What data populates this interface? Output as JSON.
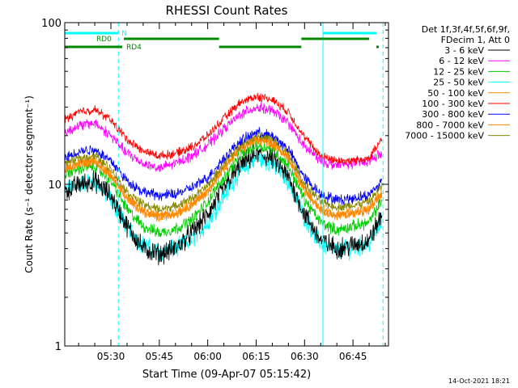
{
  "chart_data": {
    "type": "line",
    "title": "RHESSI Count Rates",
    "xlabel": "Start Time (09-Apr-07 05:15:42)",
    "ylabel": "Count Rate (s⁻¹ detector segment⁻¹)",
    "y_scale": "log",
    "ylim": [
      1,
      100
    ],
    "xlim_minutes_after_0500": [
      15.7,
      116
    ],
    "x_ticks": [
      "05:30",
      "05:45",
      "06:00",
      "06:15",
      "06:30",
      "06:45"
    ],
    "x_tick_minutes_after_0500": [
      30,
      45,
      60,
      75,
      90,
      105
    ],
    "y_ticks": [
      "1",
      "10",
      "100"
    ],
    "y_tick_values": [
      1,
      10,
      100
    ],
    "legend_header": [
      "Det 1f,3f,4f,5f,6f,9f,",
      "FDecim 1, Att 0"
    ],
    "legend_position": "right",
    "series": [
      {
        "name": "3 - 6 keV",
        "color": "#000000",
        "profile": [
          [
            15.7,
            9
          ],
          [
            20,
            10
          ],
          [
            25,
            10.5
          ],
          [
            30,
            8.5
          ],
          [
            35,
            5.5
          ],
          [
            40,
            4
          ],
          [
            45,
            3.7
          ],
          [
            50,
            4
          ],
          [
            55,
            5
          ],
          [
            60,
            6.5
          ],
          [
            65,
            9.5
          ],
          [
            70,
            13
          ],
          [
            75,
            15.5
          ],
          [
            80,
            14.5
          ],
          [
            85,
            11
          ],
          [
            90,
            6.5
          ],
          [
            95,
            4.5
          ],
          [
            100,
            4
          ],
          [
            105,
            4.2
          ],
          [
            110,
            4.5
          ],
          [
            114,
            6.5
          ]
        ]
      },
      {
        "name": "6 - 12 keV",
        "color": "#ff00ff",
        "profile": [
          [
            15.7,
            21
          ],
          [
            20,
            23
          ],
          [
            25,
            24
          ],
          [
            30,
            20
          ],
          [
            35,
            15.5
          ],
          [
            40,
            13.5
          ],
          [
            45,
            12.5
          ],
          [
            50,
            13.5
          ],
          [
            55,
            15
          ],
          [
            60,
            17.5
          ],
          [
            65,
            22
          ],
          [
            70,
            27
          ],
          [
            75,
            30
          ],
          [
            80,
            28.5
          ],
          [
            85,
            24
          ],
          [
            90,
            17
          ],
          [
            95,
            14
          ],
          [
            100,
            13
          ],
          [
            105,
            13.5
          ],
          [
            110,
            14
          ],
          [
            114,
            15.5
          ]
        ]
      },
      {
        "name": "12 - 25 keV",
        "color": "#00cc00",
        "profile": [
          [
            15.7,
            11.5
          ],
          [
            20,
            12.5
          ],
          [
            25,
            13
          ],
          [
            30,
            10.5
          ],
          [
            35,
            7
          ],
          [
            40,
            5.5
          ],
          [
            45,
            5
          ],
          [
            50,
            5.3
          ],
          [
            55,
            6
          ],
          [
            60,
            7.8
          ],
          [
            65,
            11
          ],
          [
            70,
            15
          ],
          [
            75,
            17.5
          ],
          [
            80,
            16.5
          ],
          [
            85,
            13
          ],
          [
            90,
            8
          ],
          [
            95,
            5.8
          ],
          [
            100,
            5.2
          ],
          [
            105,
            5.5
          ],
          [
            110,
            5.8
          ],
          [
            114,
            8
          ]
        ]
      },
      {
        "name": "25 - 50 keV",
        "color": "#00ffff",
        "profile": [
          [
            15.7,
            9
          ],
          [
            20,
            10
          ],
          [
            25,
            10.5
          ],
          [
            30,
            8
          ],
          [
            35,
            5.5
          ],
          [
            40,
            4.2
          ],
          [
            45,
            3.8
          ],
          [
            50,
            4
          ],
          [
            55,
            4.5
          ],
          [
            60,
            5.8
          ],
          [
            65,
            8.5
          ],
          [
            70,
            12
          ],
          [
            75,
            14.5
          ],
          [
            80,
            13.5
          ],
          [
            85,
            10.5
          ],
          [
            90,
            6.2
          ],
          [
            95,
            4.3
          ],
          [
            100,
            3.9
          ],
          [
            105,
            4
          ],
          [
            110,
            4.3
          ],
          [
            114,
            6
          ]
        ]
      },
      {
        "name": "50 - 100 keV",
        "color": "#ff8800",
        "profile": [
          [
            15.7,
            12.5
          ],
          [
            20,
            13.5
          ],
          [
            25,
            14
          ],
          [
            30,
            11.5
          ],
          [
            35,
            8.2
          ],
          [
            40,
            6.8
          ],
          [
            45,
            6.3
          ],
          [
            50,
            6.6
          ],
          [
            55,
            7.5
          ],
          [
            60,
            9
          ],
          [
            65,
            12.5
          ],
          [
            70,
            16.5
          ],
          [
            75,
            19
          ],
          [
            80,
            18
          ],
          [
            85,
            14.5
          ],
          [
            90,
            9.2
          ],
          [
            95,
            7
          ],
          [
            100,
            6.4
          ],
          [
            105,
            6.6
          ],
          [
            110,
            7
          ],
          [
            114,
            9
          ]
        ]
      },
      {
        "name": "100 - 300 keV",
        "color": "#ff0000",
        "profile": [
          [
            15.7,
            25
          ],
          [
            20,
            28
          ],
          [
            25,
            29
          ],
          [
            30,
            25
          ],
          [
            35,
            19
          ],
          [
            40,
            16
          ],
          [
            45,
            15
          ],
          [
            50,
            15.5
          ],
          [
            55,
            17
          ],
          [
            60,
            20
          ],
          [
            65,
            25.5
          ],
          [
            70,
            32
          ],
          [
            75,
            35
          ],
          [
            80,
            33.5
          ],
          [
            85,
            28
          ],
          [
            90,
            19.5
          ],
          [
            95,
            15
          ],
          [
            100,
            14
          ],
          [
            105,
            14
          ],
          [
            110,
            14.5
          ],
          [
            114,
            19
          ]
        ]
      },
      {
        "name": "300 - 800 keV",
        "color": "#0000ff",
        "profile": [
          [
            15.7,
            14.5
          ],
          [
            20,
            16
          ],
          [
            25,
            16.5
          ],
          [
            30,
            14
          ],
          [
            35,
            10.5
          ],
          [
            40,
            9
          ],
          [
            45,
            8.5
          ],
          [
            50,
            8.7
          ],
          [
            55,
            9.5
          ],
          [
            60,
            11
          ],
          [
            65,
            14.5
          ],
          [
            70,
            18.5
          ],
          [
            75,
            21
          ],
          [
            80,
            20
          ],
          [
            85,
            16.5
          ],
          [
            90,
            11
          ],
          [
            95,
            8.7
          ],
          [
            100,
            8
          ],
          [
            105,
            8.2
          ],
          [
            110,
            8.6
          ],
          [
            114,
            10.5
          ]
        ]
      },
      {
        "name": "800 - 7000 keV",
        "color": "#ff8800",
        "profile": [
          [
            15.7,
            12.5
          ],
          [
            20,
            13.5
          ],
          [
            25,
            14
          ],
          [
            30,
            11.5
          ],
          [
            35,
            8.2
          ],
          [
            40,
            6.8
          ],
          [
            45,
            6.3
          ],
          [
            50,
            6.6
          ],
          [
            55,
            7.5
          ],
          [
            60,
            9
          ],
          [
            65,
            12.5
          ],
          [
            70,
            16.5
          ],
          [
            75,
            19
          ],
          [
            80,
            18
          ],
          [
            85,
            14.5
          ],
          [
            90,
            9.2
          ],
          [
            95,
            7
          ],
          [
            100,
            6.4
          ],
          [
            105,
            6.6
          ],
          [
            110,
            7
          ],
          [
            114,
            9
          ]
        ]
      },
      {
        "name": "7000 - 15000 keV",
        "color": "#888800",
        "profile": [
          [
            15.7,
            13.5
          ],
          [
            20,
            14.5
          ],
          [
            25,
            15
          ],
          [
            30,
            12.5
          ],
          [
            35,
            9
          ],
          [
            40,
            7.5
          ],
          [
            45,
            7
          ],
          [
            50,
            7.3
          ],
          [
            55,
            8.2
          ],
          [
            60,
            9.8
          ],
          [
            65,
            13.3
          ],
          [
            70,
            17.5
          ],
          [
            75,
            20
          ],
          [
            80,
            19
          ],
          [
            85,
            15.5
          ],
          [
            90,
            10
          ],
          [
            95,
            7.8
          ],
          [
            100,
            7.2
          ],
          [
            105,
            7.4
          ],
          [
            110,
            7.8
          ],
          [
            114,
            9.8
          ]
        ]
      }
    ],
    "draw_order": [
      3,
      0,
      2,
      4,
      7,
      8,
      6,
      1,
      5
    ],
    "noise_amplitude": [
      0.12,
      0.06,
      0.07,
      0.11,
      0.06,
      0.05,
      0.06,
      0.06,
      0.05
    ],
    "vertical_lines": [
      {
        "minute": 15.7,
        "color": "#00ffff",
        "style": "solid"
      },
      {
        "minute": 32.3,
        "color": "#00ffff",
        "style": "dashed"
      },
      {
        "minute": 95.7,
        "color": "#00ffff",
        "style": "solid"
      },
      {
        "minute": 114.3,
        "color": "#00ffff",
        "style": "dashed"
      }
    ],
    "flag_bars": [
      {
        "label": "N",
        "color": "#00ffff",
        "row": 1,
        "segments": [
          [
            15.7,
            32.3
          ],
          [
            95.7,
            115.5
          ]
        ]
      },
      {
        "label": "RD0",
        "color": "#008800",
        "row": 2,
        "segments": [
          [
            34,
            63.5
          ],
          [
            89,
            110
          ]
        ]
      },
      {
        "label": "RD4",
        "color": "#008800",
        "row": 3,
        "segments": [
          [
            15.7,
            33.5
          ],
          [
            63.5,
            89
          ],
          [
            113,
            115.5
          ]
        ]
      }
    ],
    "timestamp": "14-Oct-2021 18:21"
  }
}
